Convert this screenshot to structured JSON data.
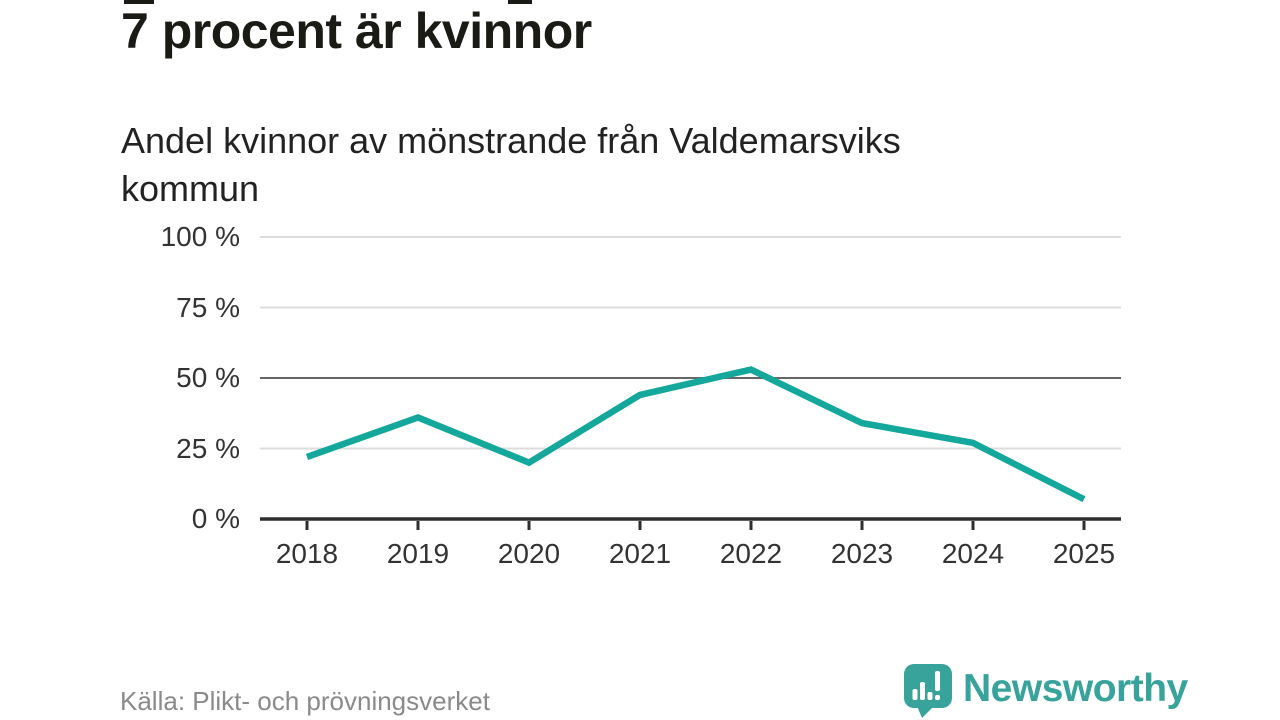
{
  "page": {
    "title": "7 procent är kvinnor",
    "subtitle": "Andel kvinnor av mönstrande från Valdemarsviks kommun",
    "source": "Källa: Plikt- och prövningsverket"
  },
  "branding": {
    "name": "Newsworthy",
    "icon": "newsworthy-chart-speech-bubble-icon",
    "color": "#38a39b"
  },
  "colors": {
    "line": "#14a79b",
    "gridline": "#dcdcdc",
    "gridline_emphasis": "#666666",
    "axis": "#2e2e2e",
    "tick_label": "#333333",
    "title_text": "#1b1b16",
    "source_text": "#8a8a8a"
  },
  "chart_data": {
    "type": "line",
    "title": "7 procent är kvinnor",
    "subtitle": "Andel kvinnor av mönstrande från Valdemarsviks kommun",
    "x": [
      "2018",
      "2019",
      "2020",
      "2021",
      "2022",
      "2023",
      "2024",
      "2025"
    ],
    "series": [
      {
        "name": "Andel kvinnor av mönstrande",
        "values": [
          22,
          36,
          20,
          44,
          53,
          34,
          27,
          7
        ],
        "color": "#14a79b"
      }
    ],
    "unit": "%",
    "xlabel": "",
    "ylabel": "",
    "ylim": [
      0,
      100
    ],
    "yticks": [
      0,
      25,
      50,
      75,
      100
    ],
    "ytick_labels": [
      "0 %",
      "25 %",
      "50 %",
      "75 %",
      "100 %"
    ],
    "emphasized_gridline": 50,
    "grid": true,
    "legend": false
  }
}
